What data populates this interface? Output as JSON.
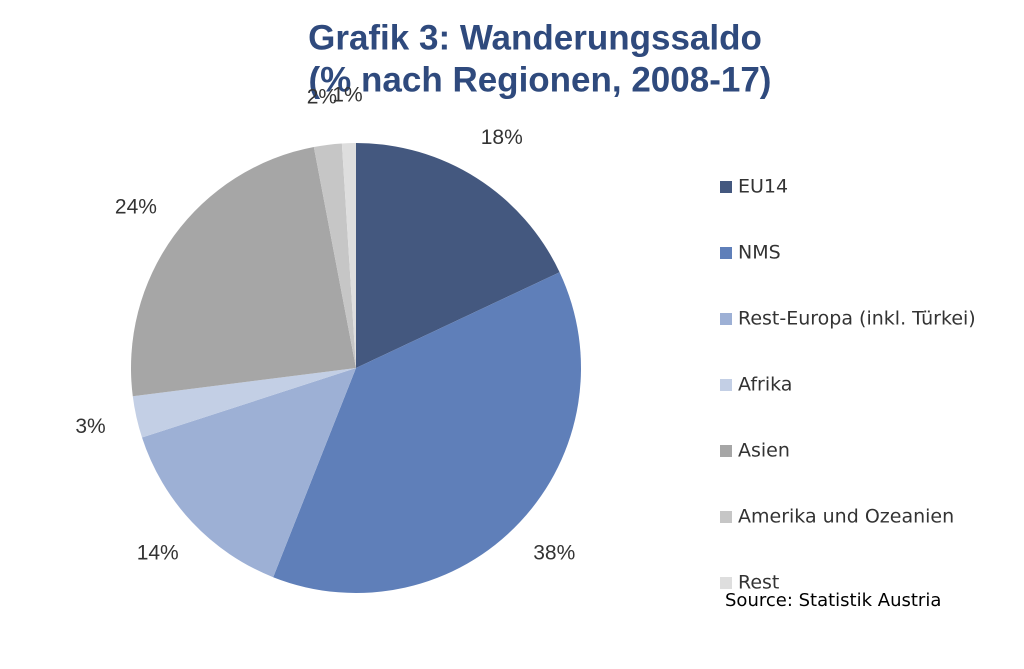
{
  "chart_data": {
    "type": "pie",
    "title": [
      "Grafik 3: Wanderungssaldo",
      "(% nach Regionen, 2008-17)"
    ],
    "categories": [
      "EU14",
      "NMS",
      "Rest-Europa  (inkl. Türkei)",
      "Afrika",
      "Asien",
      "Amerika und Ozeanien",
      "Rest"
    ],
    "values": [
      18,
      38,
      14,
      3,
      24,
      2,
      1
    ],
    "value_labels": [
      "18%",
      "38%",
      "14%",
      "3%",
      "24%",
      "2%",
      "1%"
    ],
    "colors": [
      "#44587f",
      "#5f7fb9",
      "#9db0d5",
      "#c3cfe5",
      "#a6a6a6",
      "#c6c6c6",
      "#dedede"
    ],
    "legend": "right",
    "source": "Source: Statistik Austria"
  }
}
